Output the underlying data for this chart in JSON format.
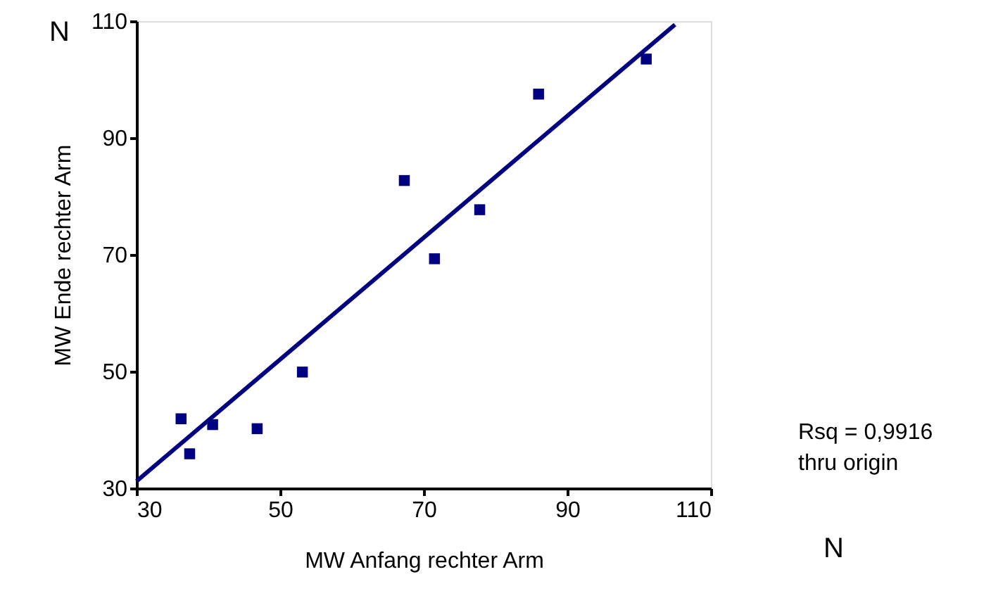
{
  "chart_data": {
    "type": "scatter",
    "xlabel": "MW Anfang rechter Arm",
    "ylabel": "MW Ende rechter Arm",
    "xlim": [
      30,
      110
    ],
    "ylim": [
      30,
      110
    ],
    "xticks": [
      30,
      50,
      70,
      90,
      110
    ],
    "yticks": [
      30,
      50,
      70,
      90,
      110
    ],
    "grid": false,
    "series": [
      {
        "marker": "square",
        "color": "#000080",
        "x": [
          36.2,
          37.4,
          40.6,
          46.8,
          53.1,
          67.3,
          71.5,
          77.8,
          86.0,
          101.0
        ],
        "values": [
          41.9,
          35.9,
          40.9,
          40.2,
          49.9,
          82.7,
          69.3,
          77.7,
          97.5,
          103.5
        ]
      },
      {
        "type": "line",
        "color": "#000080",
        "line_style": "solid",
        "x": [
          30,
          105
        ],
        "values": [
          31.2,
          109.4
        ]
      }
    ],
    "annotations": [
      "N",
      "Rsq = 0,9916\nthru origin",
      "N"
    ]
  }
}
